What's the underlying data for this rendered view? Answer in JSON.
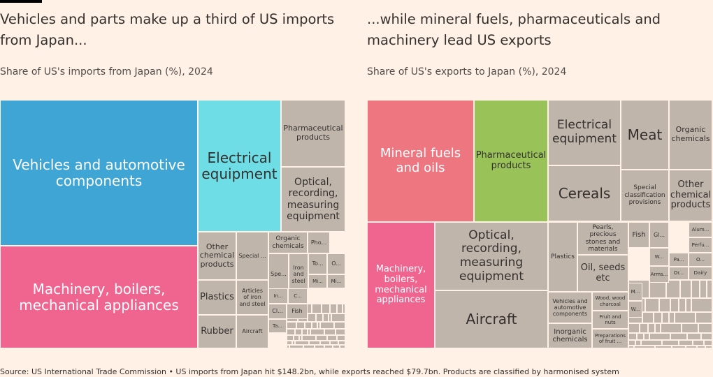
{
  "colors": {
    "background": "#fff1e5",
    "vehicles": "#3ea5d5",
    "electrical_imports": "#6fdde6",
    "machinery": "#f0658f",
    "mineral_fuels": "#ee7680",
    "pharma_exports": "#99c259",
    "neutral": "#c0b5ab",
    "text": "#33302e"
  },
  "source": "Source: US International Trade Commission • US imports from Japan hit $148.2bn, while exports reached $79.7bn. Products are classified by harmonised system",
  "chart_data": [
    {
      "type": "treemap",
      "title": "Vehicles and parts make up a third of US imports from Japan...",
      "subtitle": "Share of US's imports from Japan (%), 2024",
      "total_label": "$148.2bn",
      "nodes": [
        {
          "name": "Vehicles and automotive components",
          "label": "Vehicles and automotive components",
          "value": 33.8,
          "color": "vehicles"
        },
        {
          "name": "Machinery, boilers, mechanical appliances",
          "label": "Machinery, boilers, mechanical appliances",
          "value": 24.7,
          "color": "machinery"
        },
        {
          "name": "Electrical equipment",
          "label": "Electrical equipment",
          "value": 8.7,
          "color": "electrical_imports"
        },
        {
          "name": "Pharmaceutical products",
          "label": "Pharmaceutical products",
          "value": 4.0,
          "color": "neutral"
        },
        {
          "name": "Optical, recording, measuring equipment",
          "label": "Optical, recording, measuring equipment",
          "value": 3.9,
          "color": "neutral"
        },
        {
          "name": "Other chemical products",
          "label": "Other chemical products",
          "value": 1.7,
          "color": "neutral"
        },
        {
          "name": "Special classification provisions",
          "label": "Special ...",
          "value": 1.5,
          "color": "neutral"
        },
        {
          "name": "Plastics",
          "label": "Plastics",
          "value": 1.6,
          "color": "neutral"
        },
        {
          "name": "Articles of iron and steel",
          "label": "Articles of iron and steel",
          "value": 1.3,
          "color": "neutral"
        },
        {
          "name": "Rubber",
          "label": "Rubber",
          "value": 1.4,
          "color": "neutral"
        },
        {
          "name": "Aircraft",
          "label": "Aircraft",
          "value": 1.3,
          "color": "neutral"
        },
        {
          "name": "Organic chemicals",
          "label": "Organic chemicals",
          "value": 0.9,
          "color": "neutral"
        },
        {
          "name": "Photographic goods",
          "label": "Pho...",
          "value": 0.5,
          "color": "neutral"
        },
        {
          "name": "Spe...",
          "label": "Spe...",
          "value": 0.5,
          "color": "neutral"
        },
        {
          "name": "Iron and steel",
          "label": "Iron and steel",
          "value": 0.5,
          "color": "neutral"
        },
        {
          "name": "To...",
          "label": "To...",
          "value": 0.3,
          "color": "neutral"
        },
        {
          "name": "O...",
          "label": "O...",
          "value": 0.3,
          "color": "neutral"
        },
        {
          "name": "Mi...",
          "label": "Mi...",
          "value": 0.3,
          "color": "neutral"
        },
        {
          "name": "Mi... (2)",
          "label": "Mi...",
          "value": 0.3,
          "color": "neutral"
        },
        {
          "name": "In...",
          "label": "In...",
          "value": 0.3,
          "color": "neutral"
        },
        {
          "name": "C...",
          "label": "C...",
          "value": 0.3,
          "color": "neutral"
        },
        {
          "name": "Cl...",
          "label": "Cl...",
          "value": 0.3,
          "color": "neutral"
        },
        {
          "name": "Fish",
          "label": "Fish",
          "value": 0.3,
          "color": "neutral"
        },
        {
          "name": "Ta...",
          "label": "Ta...",
          "value": 0.3,
          "color": "neutral"
        }
      ]
    },
    {
      "type": "treemap",
      "title": "...while mineral fuels, pharmaceuticals and machinery lead US exports",
      "subtitle": "Share of US's exports to Japan (%), 2024",
      "total_label": "$79.7bn",
      "nodes": [
        {
          "name": "Mineral fuels and oils",
          "label": "Mineral fuels and oils",
          "value": 10.7,
          "color": "mineral_fuels"
        },
        {
          "name": "Pharmaceutical products",
          "label": "Pharmaceutical products",
          "value": 10.3,
          "color": "pharma_exports"
        },
        {
          "name": "Machinery, boilers, mechanical appliances",
          "label": "Machinery, boilers, mechanical appliances",
          "value": 13.3,
          "color": "machinery"
        },
        {
          "name": "Optical, recording, measuring equipment",
          "label": "Optical, recording, measuring equipment",
          "value": 8.9,
          "color": "neutral"
        },
        {
          "name": "Aircraft",
          "label": "Aircraft",
          "value": 7.3,
          "color": "neutral"
        },
        {
          "name": "Electrical equipment",
          "label": "Electrical equipment",
          "value": 5.6,
          "color": "neutral"
        },
        {
          "name": "Cereals",
          "label": "Cereals",
          "value": 5.1,
          "color": "neutral"
        },
        {
          "name": "Meat",
          "label": "Meat",
          "value": 3.8,
          "color": "neutral"
        },
        {
          "name": "Organic chemicals",
          "label": "Organic chemicals",
          "value": 3.5,
          "color": "neutral"
        },
        {
          "name": "Special classification provisions",
          "label": "Special classification provisions",
          "value": 2.6,
          "color": "neutral"
        },
        {
          "name": "Other chemical products",
          "label": "Other chemical products",
          "value": 2.5,
          "color": "neutral"
        },
        {
          "name": "Plastics",
          "label": "Plastics",
          "value": 2.5,
          "color": "neutral"
        },
        {
          "name": "Pearls, precious stones and materials",
          "label": "Pearls, precious stones and materials",
          "value": 1.6,
          "color": "neutral"
        },
        {
          "name": "Oil, seeds etc",
          "label": "Oil, seeds etc",
          "value": 2.0,
          "color": "neutral"
        },
        {
          "name": "Vehicles and automotive components",
          "label": "Vehicles and automotive components",
          "value": 1.9,
          "color": "neutral"
        },
        {
          "name": "Inorganic chemicals",
          "label": "Inorganic chemicals",
          "value": 1.4,
          "color": "neutral"
        },
        {
          "name": "Wood, wood charcoal",
          "label": "Wood, wood charcoal",
          "value": 0.8,
          "color": "neutral"
        },
        {
          "name": "Fruit and nuts",
          "label": "Fruit and nuts",
          "value": 0.8,
          "color": "neutral"
        },
        {
          "name": "Preparations of fruit",
          "label": "Preparations of fruit ...",
          "value": 0.8,
          "color": "neutral"
        },
        {
          "name": "Fish",
          "label": "Fish",
          "value": 1.0,
          "color": "neutral"
        },
        {
          "name": "Gl...",
          "label": "Gl...",
          "value": 0.7,
          "color": "neutral"
        },
        {
          "name": "W...",
          "label": "W...",
          "value": 0.7,
          "color": "neutral"
        },
        {
          "name": "Arms...",
          "label": "Arms...",
          "value": 0.6,
          "color": "neutral"
        },
        {
          "name": "M...",
          "label": "M...",
          "value": 0.4,
          "color": "neutral"
        },
        {
          "name": "W... (2)",
          "label": "W...",
          "value": 0.4,
          "color": "neutral"
        },
        {
          "name": "Alum...",
          "label": "Alum...",
          "value": 0.5,
          "color": "neutral"
        },
        {
          "name": "Perfu...",
          "label": "Perfu...",
          "value": 0.5,
          "color": "neutral"
        },
        {
          "name": "Pa...",
          "label": "Pa...",
          "value": 0.4,
          "color": "neutral"
        },
        {
          "name": "O...",
          "label": "O...",
          "value": 0.4,
          "color": "neutral"
        },
        {
          "name": "Or...",
          "label": "Or...",
          "value": 0.4,
          "color": "neutral"
        },
        {
          "name": "Dairy",
          "label": "Dairy",
          "value": 0.4,
          "color": "neutral"
        }
      ]
    }
  ]
}
